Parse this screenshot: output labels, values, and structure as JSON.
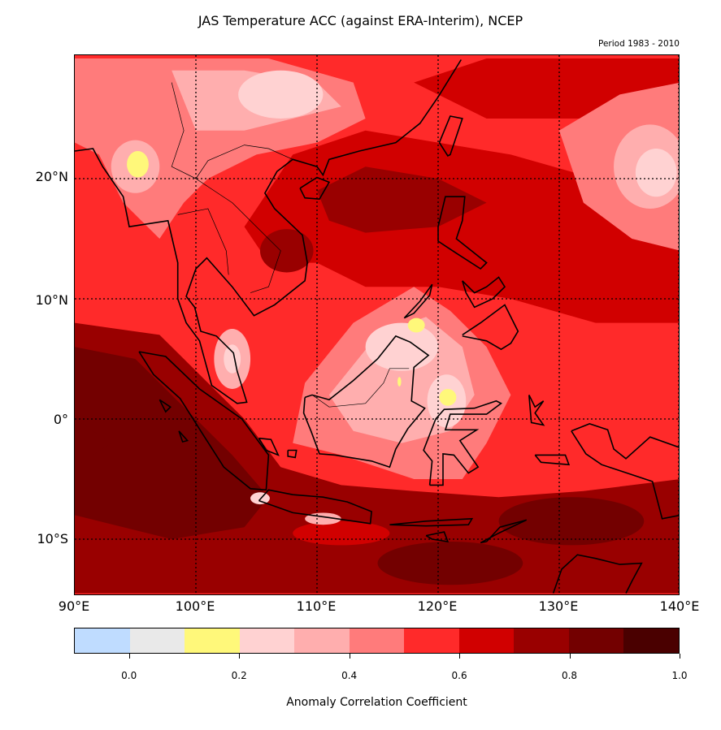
{
  "title": "JAS Temperature ACC (against ERA-Interim), NCEP",
  "subtitle": "Period 1983 - 2010",
  "axes": {
    "lat_labels": [
      "20°N",
      "10°N",
      "0°",
      "10°S"
    ],
    "lon_labels": [
      "90°E",
      "100°E",
      "110°E",
      "120°E",
      "130°E",
      "140°E"
    ],
    "lon_range": [
      90,
      140
    ],
    "lat_range": [
      -14.5,
      30
    ]
  },
  "colorbar": {
    "label": "Anomaly Correlation Coefficient",
    "tick_labels": [
      "0.0",
      "0.2",
      "0.4",
      "0.6",
      "0.8",
      "1.0"
    ],
    "levels": [
      -0.1,
      0.0,
      0.1,
      0.2,
      0.3,
      0.4,
      0.5,
      0.6,
      0.7,
      0.8,
      0.9,
      1.0
    ],
    "colors": [
      "#bfdcff",
      "#e9e9e9",
      "#fff87a",
      "#ffd2d2",
      "#ffaeae",
      "#ff7b7b",
      "#ff2a2a",
      "#d10000",
      "#990000",
      "#730000",
      "#4a0000"
    ]
  }
}
